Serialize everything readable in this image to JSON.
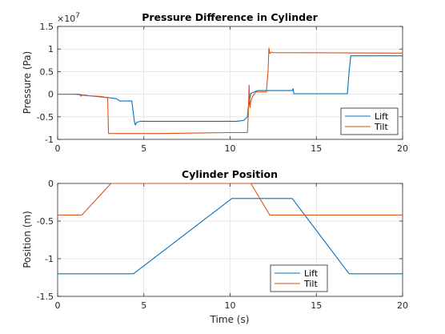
{
  "chart_data": [
    {
      "type": "line",
      "title": "Pressure Difference in Cylinder",
      "xlabel": "",
      "ylabel": "Pressure (Pa)",
      "xlim": [
        0,
        20
      ],
      "ylim": [
        -1,
        1.5
      ],
      "y_multiplier_label": "×10",
      "y_multiplier_exponent": "7",
      "xticks": [
        "0",
        "5",
        "10",
        "15",
        "20"
      ],
      "xtick_values": [
        0,
        5,
        10,
        15,
        20
      ],
      "yticks": [
        "-1",
        "-0.5",
        "0",
        "0.5",
        "1",
        "1.5"
      ],
      "ytick_values": [
        -1,
        -0.5,
        0,
        0.5,
        1,
        1.5
      ],
      "grid": true,
      "legend_position": "bottom-right",
      "series": [
        {
          "name": "Lift",
          "color": "#0072BD",
          "x": [
            0,
            1.0,
            1.5,
            2.0,
            2.5,
            3.0,
            3.4,
            3.6,
            4.3,
            4.45,
            4.5,
            4.6,
            4.8,
            6.0,
            8.0,
            10.0,
            10.4,
            10.8,
            11.0,
            11.05,
            11.1,
            11.2,
            11.4,
            11.6,
            13.6,
            13.65,
            13.7,
            16.8,
            16.9,
            17.0,
            20
          ],
          "y": [
            0,
            0,
            -0.02,
            -0.04,
            -0.06,
            -0.08,
            -0.1,
            -0.15,
            -0.15,
            -0.6,
            -0.68,
            -0.62,
            -0.6,
            -0.6,
            -0.6,
            -0.6,
            -0.6,
            -0.58,
            -0.5,
            -0.3,
            -0.2,
            0.02,
            0.05,
            0.08,
            0.08,
            0.12,
            0.01,
            0.01,
            0.5,
            0.85,
            0.85
          ]
        },
        {
          "name": "Tilt",
          "color": "#D95319",
          "x": [
            0,
            1.3,
            1.35,
            1.4,
            1.6,
            2.5,
            2.9,
            2.95,
            3.1,
            4.0,
            6.0,
            8.0,
            10.0,
            11.0,
            11.05,
            11.1,
            11.15,
            11.2,
            11.3,
            11.4,
            11.5,
            12.1,
            12.2,
            12.25,
            12.3,
            12.4,
            12.5,
            20
          ],
          "y": [
            0,
            0,
            -0.05,
            -0.02,
            -0.03,
            -0.05,
            -0.08,
            -0.87,
            -0.87,
            -0.87,
            -0.87,
            -0.86,
            -0.85,
            -0.85,
            -0.5,
            0.2,
            -0.3,
            -0.15,
            -0.05,
            0.0,
            0.05,
            0.05,
            0.5,
            1.02,
            0.9,
            0.93,
            0.92,
            0.91
          ]
        }
      ]
    },
    {
      "type": "line",
      "title": "Cylinder Position",
      "xlabel": "Time (s)",
      "ylabel": "Position (m)",
      "xlim": [
        0,
        20
      ],
      "ylim": [
        -1.5,
        0
      ],
      "xticks": [
        "0",
        "5",
        "10",
        "15",
        "20"
      ],
      "xtick_values": [
        0,
        5,
        10,
        15,
        20
      ],
      "yticks": [
        "-1.5",
        "-1",
        "-0.5",
        "0"
      ],
      "ytick_values": [
        -1.5,
        -1,
        -0.5,
        0
      ],
      "grid": true,
      "legend_position": "bottom-right",
      "series": [
        {
          "name": "Lift",
          "color": "#0072BD",
          "x": [
            0,
            4.4,
            10.1,
            13.6,
            16.9,
            20
          ],
          "y": [
            -1.2,
            -1.2,
            -0.2,
            -0.2,
            -1.2,
            -1.2
          ]
        },
        {
          "name": "Tilt",
          "color": "#D95319",
          "x": [
            0,
            1.4,
            3.1,
            11.2,
            12.3,
            20
          ],
          "y": [
            -0.42,
            -0.42,
            0,
            0,
            -0.42,
            -0.42
          ]
        }
      ]
    }
  ]
}
